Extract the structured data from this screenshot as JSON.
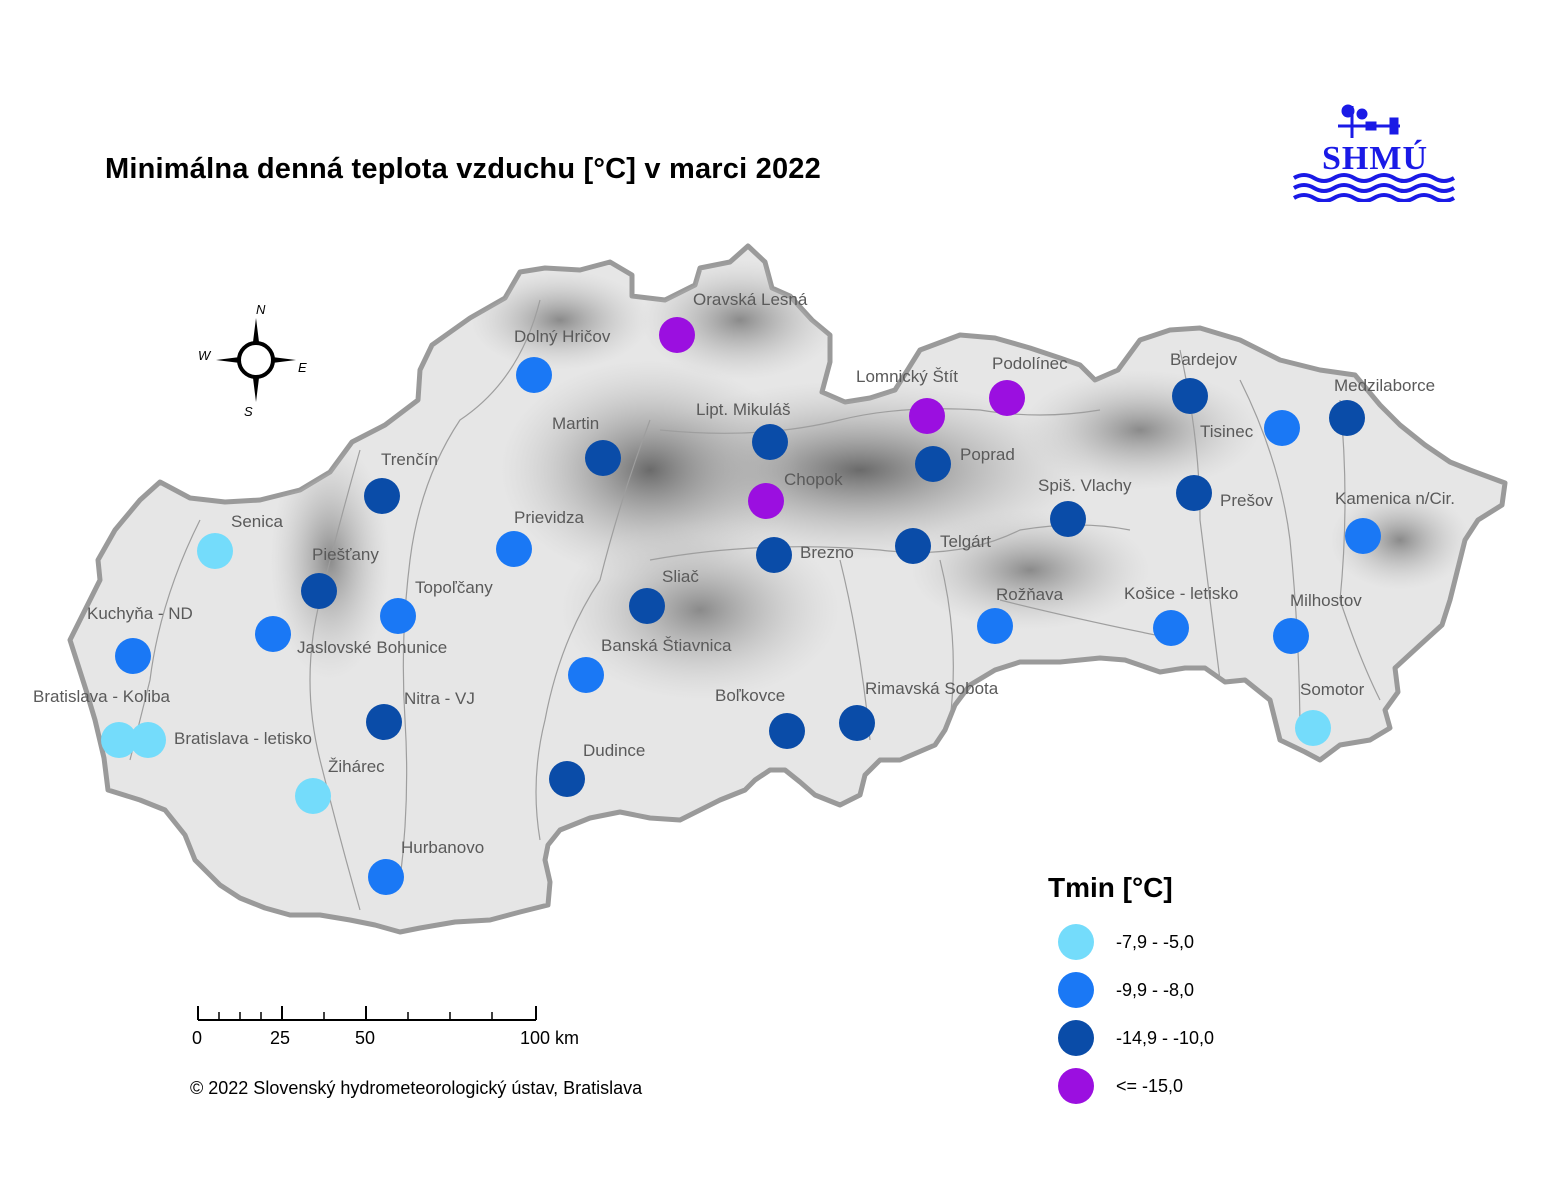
{
  "title": "Minimálna denná teplota vzduchu [°C] v marci 2022",
  "logo": {
    "text": "SHMÚ",
    "color": "#1a1ae6"
  },
  "compass": {
    "n": "N",
    "s": "S",
    "e": "E",
    "w": "W"
  },
  "legend": {
    "title": "Tmin [°C]",
    "classes": [
      {
        "label": "-7,9 - -5,0",
        "color": "#74dcfb"
      },
      {
        "label": "-9,9 - -8,0",
        "color": "#1a78f5"
      },
      {
        "label": "-14,9 - -10,0",
        "color": "#0a4ca8"
      },
      {
        "label": "<= -15,0",
        "color": "#9b0fe0"
      }
    ]
  },
  "scalebar": {
    "ticks": [
      "0",
      "25",
      "50",
      "100 km"
    ]
  },
  "copyright": "© 2022 Slovenský hydrometeorologický ústav, Bratislava",
  "stations": [
    {
      "name": "Oravská Lesná",
      "class": 3
    },
    {
      "name": "Dolný Hričov",
      "class": 1
    },
    {
      "name": "Lomnický Štít",
      "class": 3
    },
    {
      "name": "Podolínec",
      "class": 3
    },
    {
      "name": "Bardejov",
      "class": 2
    },
    {
      "name": "Medzilaborce",
      "class": 2
    },
    {
      "name": "Tisinec",
      "class": 1
    },
    {
      "name": "Martin",
      "class": 2
    },
    {
      "name": "Lipt. Mikuláš",
      "class": 2
    },
    {
      "name": "Poprad",
      "class": 2
    },
    {
      "name": "Chopok",
      "class": 3
    },
    {
      "name": "Trenčín",
      "class": 2
    },
    {
      "name": "Prešov",
      "class": 2
    },
    {
      "name": "Spiš. Vlachy",
      "class": 2
    },
    {
      "name": "Kamenica n/Cir.",
      "class": 1
    },
    {
      "name": "Senica",
      "class": 0
    },
    {
      "name": "Prievidza",
      "class": 1
    },
    {
      "name": "Brezno",
      "class": 2
    },
    {
      "name": "Telgárt",
      "class": 2
    },
    {
      "name": "Piešťany",
      "class": 2
    },
    {
      "name": "Topoľčany",
      "class": 1
    },
    {
      "name": "Sliač",
      "class": 2
    },
    {
      "name": "Rožňava",
      "class": 1
    },
    {
      "name": "Košice - letisko",
      "class": 1
    },
    {
      "name": "Milhostov",
      "class": 1
    },
    {
      "name": "Kuchyňa - ND",
      "class": 1
    },
    {
      "name": "Jaslovské Bohunice",
      "class": 1
    },
    {
      "name": "Banská Štiavnica",
      "class": 1
    },
    {
      "name": "Bratislava - Koliba",
      "class": 0
    },
    {
      "name": "Bratislava - letisko",
      "class": 0
    },
    {
      "name": "Nitra - VJ",
      "class": 2
    },
    {
      "name": "Boľkovce",
      "class": 2
    },
    {
      "name": "Rimavská Sobota",
      "class": 2
    },
    {
      "name": "Somotor",
      "class": 0
    },
    {
      "name": "Žihárec",
      "class": 0
    },
    {
      "name": "Dudince",
      "class": 2
    },
    {
      "name": "Hurbanovo",
      "class": 1
    }
  ]
}
